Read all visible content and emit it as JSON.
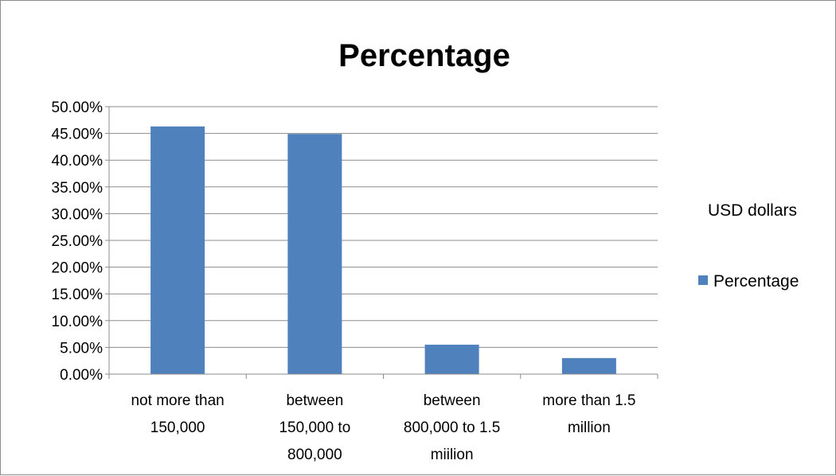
{
  "chart_data": {
    "type": "bar",
    "title": "Percentage",
    "categories": [
      "not more than 150,000",
      "between 150,000 to 800,000",
      "between 800,000 to 1.5 miilion",
      "more than 1.5 million"
    ],
    "category_label_lines": [
      [
        "not more than",
        "150,000"
      ],
      [
        "between",
        "150,000 to",
        "800,000"
      ],
      [
        "between",
        "800,000 to 1.5",
        "miilion"
      ],
      [
        "more than 1.5",
        "million"
      ]
    ],
    "series": [
      {
        "name": "Percentage",
        "values": [
          46.3,
          44.9,
          5.5,
          3.0
        ]
      }
    ],
    "ylim": [
      0,
      50
    ],
    "yticks": [
      "0.00%",
      "5.00%",
      "10.00%",
      "15.00%",
      "20.00%",
      "25.00%",
      "30.00%",
      "35.00%",
      "40.00%",
      "45.00%",
      "50.00%"
    ],
    "legend_title": "USD dollars",
    "legend_position": "right",
    "grid": true,
    "bar_color": "#4f81bd"
  }
}
